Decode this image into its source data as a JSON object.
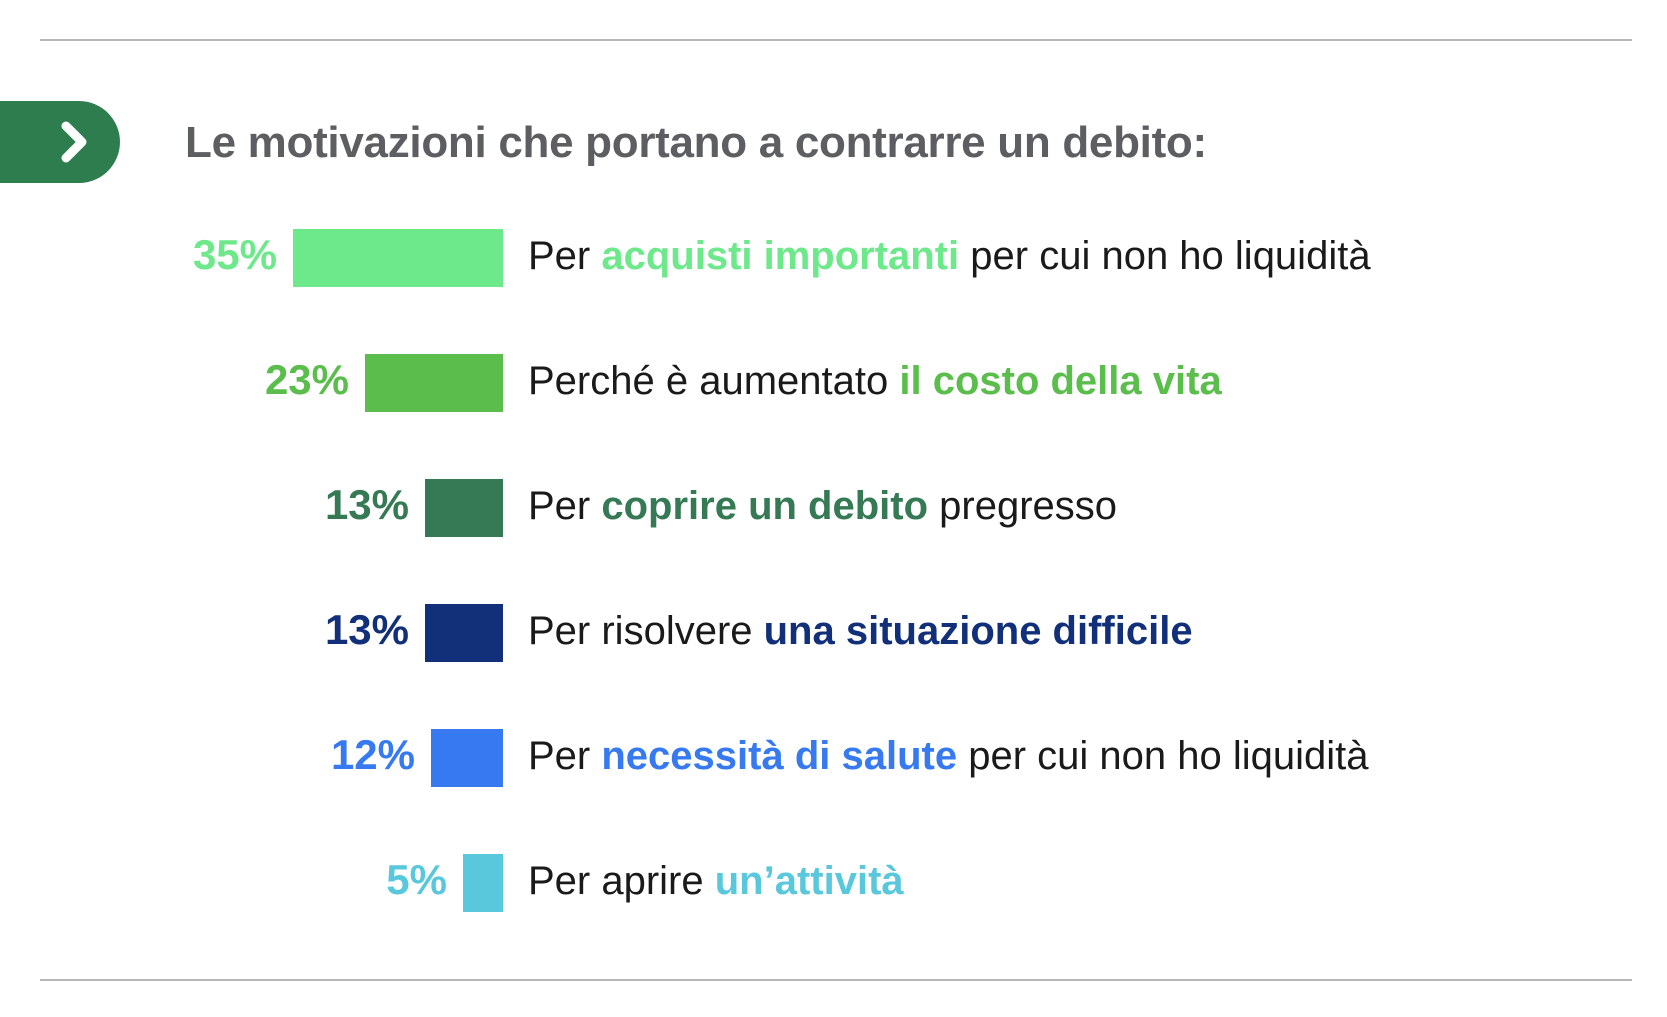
{
  "title": "Le motivazioni che portano a contrarre un debito:",
  "colors": {
    "text": "#1a1a1a",
    "title": "#5d5e62",
    "tab": "#2e7d4f",
    "rule": "#b8b8b8"
  },
  "icons": {
    "tab": "chevron-right-icon"
  },
  "chart_data": {
    "type": "bar",
    "orientation": "horizontal",
    "unit": "%",
    "bars": [
      {
        "value": 35,
        "value_label": "35%",
        "color": "#6de88b",
        "label": {
          "before": "Per ",
          "highlight": "acquisti importanti",
          "after": " per cui non ho liquidità"
        }
      },
      {
        "value": 23,
        "value_label": "23%",
        "color": "#5bbd4c",
        "label": {
          "before": "Perché è aumentato ",
          "highlight": "il costo della vita",
          "after": ""
        }
      },
      {
        "value": 13,
        "value_label": "13%",
        "color": "#357a55",
        "label": {
          "before": "Per ",
          "highlight": "coprire un debito",
          "after": " pregresso"
        }
      },
      {
        "value": 13,
        "value_label": "13%",
        "color": "#12307a",
        "label": {
          "before": "Per risolvere ",
          "highlight": "una situazione difficile",
          "after": ""
        }
      },
      {
        "value": 12,
        "value_label": "12%",
        "color": "#3679f0",
        "label": {
          "before": "Per ",
          "highlight": "necessità di salute",
          "after": " per cui non ho liquidità"
        }
      },
      {
        "value": 5,
        "value_label": "5%",
        "color": "#5ac8dc",
        "label": {
          "before": "Per aprire ",
          "highlight": "un’attività",
          "after": ""
        }
      }
    ]
  }
}
